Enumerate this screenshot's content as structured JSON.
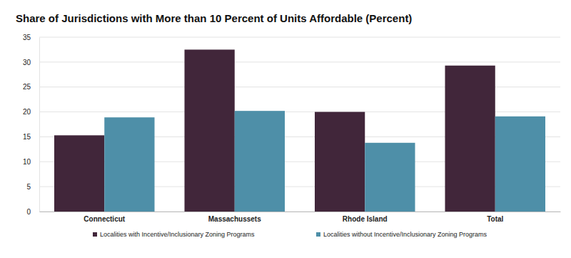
{
  "chart_data": {
    "type": "bar",
    "title": "Share of Jurisdictions with More than 10 Percent of Units Affordable (Percent)",
    "categories": [
      "Connecticut",
      "Massachussets",
      "Rhode Island",
      "Total"
    ],
    "series": [
      {
        "name": "Localities with Incentive/Inclusionary Zoning Programs",
        "color": "#41263a",
        "values": [
          15.3,
          32.5,
          20.0,
          29.3
        ]
      },
      {
        "name": "Localities without Incentive/Inclusionary Zoning Programs",
        "color": "#4e8fa8",
        "values": [
          18.9,
          20.2,
          13.8,
          19.1
        ]
      }
    ],
    "ylim": [
      0,
      35
    ],
    "yticks": [
      0,
      5,
      10,
      15,
      20,
      25,
      30,
      35
    ],
    "grid": true,
    "legend": "bottom"
  }
}
